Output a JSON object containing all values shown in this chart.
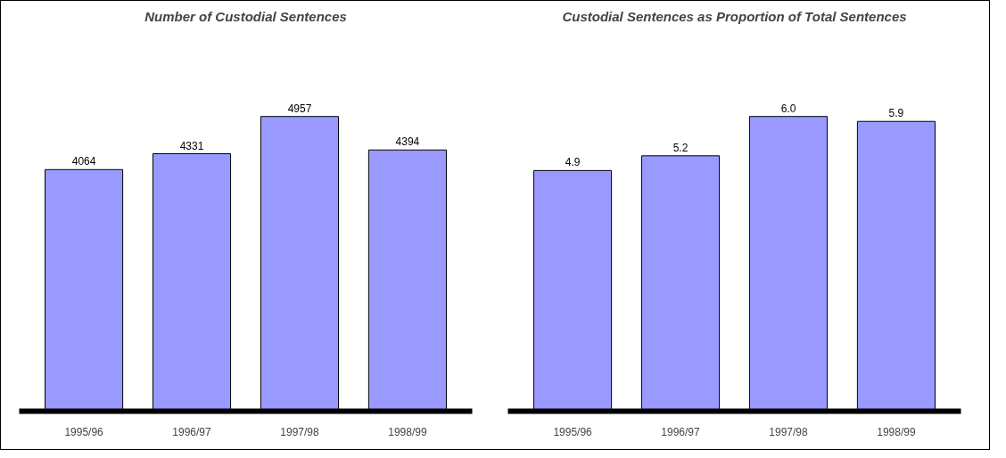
{
  "chart_data": [
    {
      "type": "bar",
      "title": "Number of Custodial Sentences",
      "categories": [
        "1995/96",
        "1996/97",
        "1997/98",
        "1998/99"
      ],
      "values": [
        4064,
        4331,
        4957,
        4394
      ],
      "color": "#9999ff",
      "data_labels": true,
      "grid": false,
      "tick_labels": "x"
    },
    {
      "type": "bar",
      "title": "Custodial Sentences as Proportion of Total Sentences",
      "categories": [
        "1995/96",
        "1996/97",
        "1997/98",
        "1998/99"
      ],
      "values": [
        4.9,
        5.2,
        6.0,
        5.9
      ],
      "value_labels": [
        "4.9",
        "5.2",
        "6.0",
        "5.9"
      ],
      "color": "#9999ff",
      "grid": false,
      "tick_labels": "x"
    }
  ]
}
